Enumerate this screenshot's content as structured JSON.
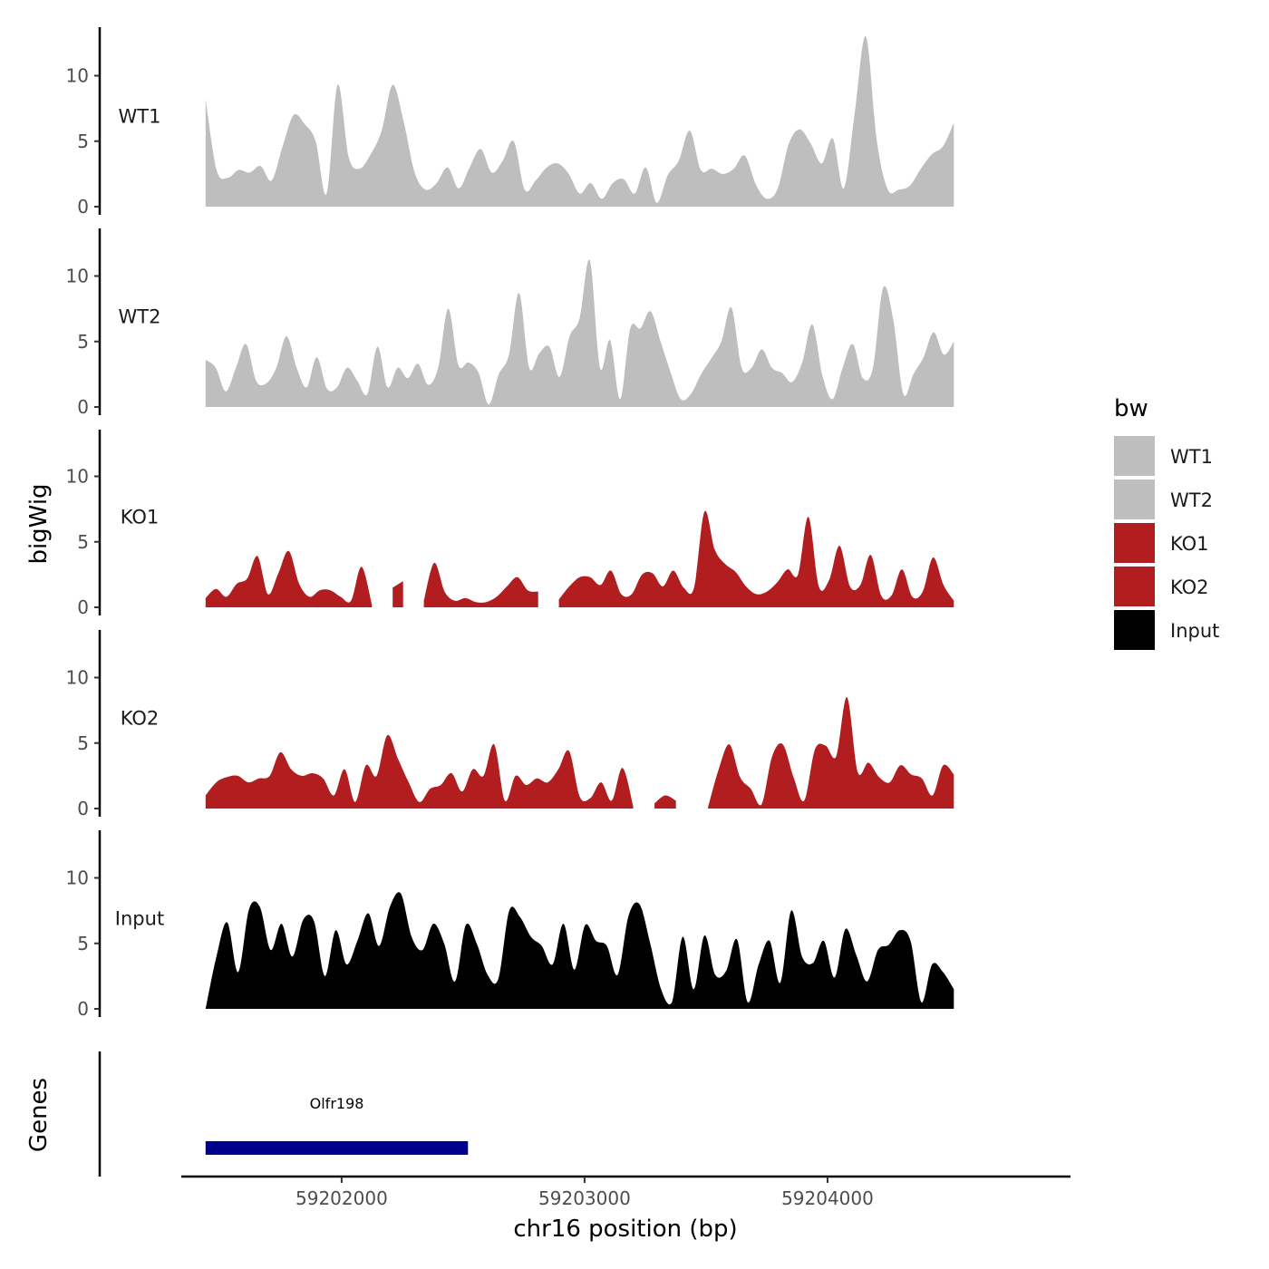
{
  "chart_data": {
    "type": "area",
    "xlabel": "chr16 position (bp)",
    "ylabel": "bigWig",
    "genes_panel_label": "Genes",
    "xlim": [
      59201340,
      59205000
    ],
    "x_range": [
      59201440,
      59204520
    ],
    "x_ticks": [
      59202000,
      59203000,
      59204000
    ],
    "ylim": [
      0,
      13.5
    ],
    "y_ticks": [
      0,
      5,
      10
    ],
    "legend": {
      "title": "bw",
      "position": "right",
      "entries": [
        {
          "label": "WT1",
          "color": "#bebebe"
        },
        {
          "label": "WT2",
          "color": "#bebebe"
        },
        {
          "label": "KO1",
          "color": "#b21d1f"
        },
        {
          "label": "KO2",
          "color": "#b21d1f"
        },
        {
          "label": "Input",
          "color": "#000000"
        }
      ]
    },
    "tracks": [
      {
        "name": "WT1",
        "color": "#bebebe",
        "values": [
          8.2,
          2.8,
          2.2,
          2.8,
          2.6,
          3.1,
          2.0,
          4.6,
          7.0,
          6.3,
          5.0,
          1.0,
          9.3,
          3.8,
          2.9,
          4.0,
          5.8,
          9.3,
          6.5,
          2.6,
          1.3,
          1.8,
          3.0,
          1.4,
          3.0,
          4.4,
          2.6,
          3.5,
          5.0,
          1.3,
          2.0,
          3.0,
          3.3,
          2.5,
          1.0,
          1.8,
          0.6,
          1.8,
          2.1,
          1.0,
          3.0,
          0.3,
          2.4,
          3.5,
          5.8,
          2.8,
          2.9,
          2.5,
          2.9,
          3.9,
          1.7,
          0.6,
          1.4,
          4.8,
          5.9,
          4.8,
          3.3,
          5.2,
          1.4,
          7.2,
          13.0,
          5.0,
          1.3,
          1.3,
          1.6,
          2.9,
          4.0,
          4.6,
          6.4
        ]
      },
      {
        "name": "WT2",
        "color": "#bebebe",
        "values": [
          3.6,
          3.0,
          1.2,
          3.0,
          4.8,
          2.0,
          1.8,
          3.0,
          5.4,
          3.0,
          1.5,
          3.8,
          1.4,
          1.5,
          3.0,
          2.0,
          1.0,
          4.6,
          1.5,
          3.0,
          2.2,
          3.3,
          1.7,
          3.0,
          7.5,
          3.2,
          3.4,
          2.6,
          0.2,
          2.5,
          4.0,
          8.7,
          3.0,
          4.1,
          4.6,
          2.3,
          5.4,
          6.8,
          11.2,
          3.0,
          5.1,
          0.6,
          6.0,
          6.0,
          7.3,
          5.0,
          2.6,
          0.6,
          1.0,
          2.5,
          3.7,
          5.0,
          7.6,
          3.0,
          3.0,
          4.4,
          3.0,
          2.6,
          1.9,
          3.4,
          6.3,
          2.4,
          0.6,
          3.0,
          4.8,
          2.2,
          3.0,
          9.1,
          6.7,
          1.0,
          2.5,
          3.8,
          5.7,
          4.0,
          5.0
        ]
      },
      {
        "name": "KO1",
        "color": "#b21d1f",
        "values": [
          0.7,
          1.4,
          0.8,
          1.8,
          2.2,
          3.9,
          1.0,
          2.6,
          4.3,
          1.8,
          0.8,
          1.3,
          1.3,
          0.8,
          0.5,
          3.1,
          0.2,
          null,
          1.5,
          2.0,
          null,
          0.5,
          3.4,
          1.2,
          0.5,
          0.7,
          0.4,
          0.4,
          0.8,
          1.6,
          2.3,
          1.3,
          1.2,
          null,
          0.6,
          1.6,
          2.3,
          2.3,
          1.7,
          2.8,
          1.0,
          1.0,
          2.5,
          2.6,
          1.6,
          2.8,
          1.5,
          1.5,
          7.3,
          4.4,
          3.3,
          2.7,
          1.6,
          1.0,
          1.2,
          1.9,
          2.9,
          2.5,
          6.9,
          1.6,
          2.1,
          4.7,
          1.6,
          1.7,
          4.0,
          0.9,
          0.9,
          2.9,
          0.8,
          1.2,
          3.8,
          1.7,
          0.5
        ]
      },
      {
        "name": "KO2",
        "color": "#b21d1f",
        "values": [
          1.0,
          2.0,
          2.4,
          2.5,
          2.0,
          2.3,
          2.5,
          4.3,
          3.0,
          2.5,
          2.7,
          2.3,
          1.0,
          3.0,
          0.5,
          3.3,
          2.5,
          5.6,
          3.8,
          2.0,
          0.5,
          1.5,
          1.8,
          2.7,
          1.3,
          3.0,
          2.5,
          4.9,
          0.6,
          2.5,
          1.8,
          2.3,
          2.0,
          3.0,
          4.4,
          0.9,
          0.8,
          2.0,
          0.6,
          3.1,
          0.2,
          null,
          0.4,
          1.0,
          0.6,
          null,
          null,
          0.1,
          3.0,
          4.9,
          2.4,
          1.5,
          0.3,
          4.0,
          4.9,
          2.4,
          0.6,
          4.5,
          4.8,
          4.0,
          8.5,
          2.8,
          3.5,
          2.4,
          2.0,
          3.3,
          2.6,
          2.3,
          1.0,
          3.3,
          2.6
        ]
      },
      {
        "name": "Input",
        "color": "#000000",
        "values": [
          0.0,
          4.0,
          6.6,
          2.8,
          7.6,
          7.8,
          4.5,
          6.5,
          4.0,
          6.8,
          6.7,
          2.5,
          6.0,
          3.4,
          5.2,
          7.3,
          4.8,
          7.8,
          8.8,
          5.5,
          4.5,
          6.5,
          5.0,
          2.1,
          6.4,
          5.0,
          2.6,
          2.3,
          7.5,
          7.0,
          5.5,
          4.8,
          3.4,
          6.5,
          3.0,
          6.4,
          5.2,
          4.8,
          2.6,
          7.1,
          8.0,
          5.0,
          1.5,
          0.5,
          5.5,
          1.5,
          5.6,
          2.6,
          2.9,
          5.3,
          0.5,
          3.4,
          5.2,
          2.0,
          7.5,
          4.0,
          3.5,
          5.2,
          2.4,
          6.1,
          4.1,
          2.1,
          4.5,
          4.9,
          6.0,
          5.2,
          0.5,
          3.4,
          2.8,
          1.5
        ]
      }
    ],
    "genes": [
      {
        "name": "Olfr198",
        "start": 59201440,
        "end": 59202520,
        "color": "#00008b"
      }
    ]
  }
}
